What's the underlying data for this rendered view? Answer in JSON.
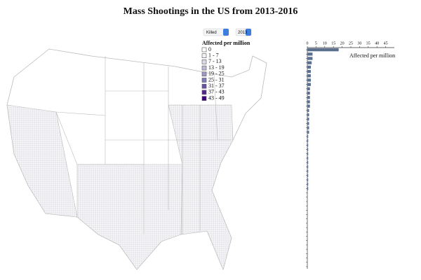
{
  "title": "Mass Shootings in the US from 2013-2016",
  "controls": {
    "measure": "Killed",
    "year": "2013"
  },
  "legend": {
    "title": "Affected per million",
    "items": [
      {
        "label": "0",
        "color": "#ffffff"
      },
      {
        "label": "1 - 7",
        "color": "#f2f0f5"
      },
      {
        "label": "7 - 13",
        "color": "#dcdae6"
      },
      {
        "label": "13 - 19",
        "color": "#bdbad6"
      },
      {
        "label": "19 - 25",
        "color": "#9e9ac8"
      },
      {
        "label": "25 - 31",
        "color": "#807dba"
      },
      {
        "label": "31 - 37",
        "color": "#6a51a3"
      },
      {
        "label": "37 - 43",
        "color": "#54278f"
      },
      {
        "label": "43 - 49",
        "color": "#3f007d"
      }
    ]
  },
  "chart_data": {
    "type": "bar",
    "orientation": "horizontal",
    "title": "Affected per million",
    "categories": [
      null,
      null,
      null,
      null,
      null,
      null,
      null,
      null,
      null,
      null,
      null,
      null,
      null,
      null,
      null,
      null,
      null,
      null,
      null,
      null,
      null,
      null,
      null,
      null,
      null,
      null,
      null,
      null,
      null,
      null,
      null,
      null,
      null,
      null,
      null,
      null,
      null,
      null,
      null,
      null,
      null,
      null,
      null,
      null,
      null,
      null,
      null,
      null,
      null,
      null,
      null
    ],
    "values": [
      18,
      3,
      3,
      2.5,
      2,
      2,
      2,
      2,
      2,
      1.5,
      1.5,
      1.5,
      1.5,
      1.5,
      1,
      1,
      1,
      1,
      1,
      1,
      0.5,
      0.5,
      0.5,
      0.5,
      0.5,
      0.5,
      0.5,
      0.5,
      0.5,
      0.5,
      0.5,
      0.5,
      0.5,
      0,
      0,
      0,
      0,
      0,
      0,
      0,
      0,
      0,
      0,
      0,
      0,
      0,
      0,
      0,
      0,
      0,
      0
    ],
    "color": "#5b6f8f",
    "xlim": [
      0,
      50
    ],
    "xticks": [
      0,
      5,
      10,
      15,
      20,
      25,
      30,
      35,
      40,
      45
    ]
  }
}
